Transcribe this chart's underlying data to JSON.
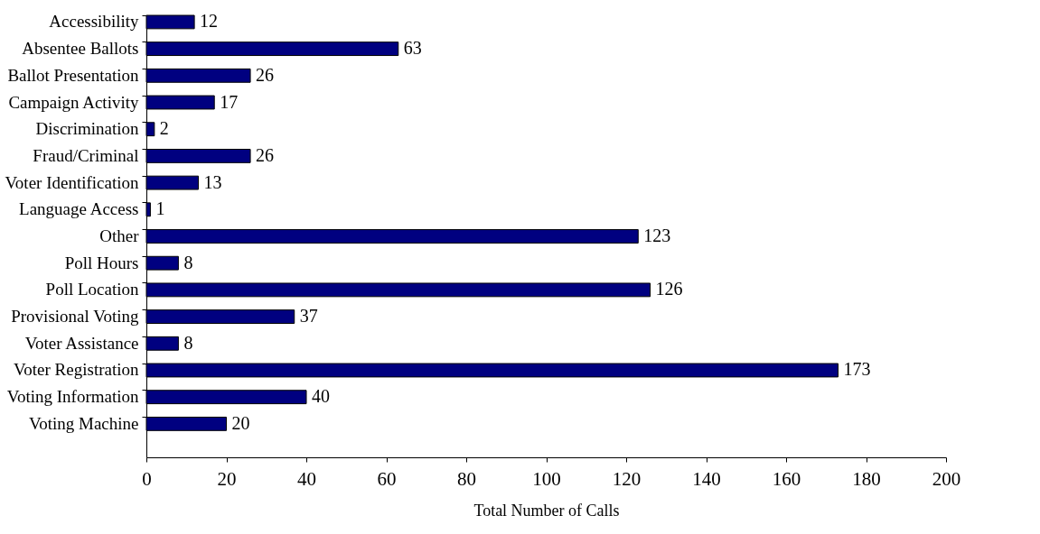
{
  "chart_data": {
    "type": "bar",
    "orientation": "horizontal",
    "xlabel": "Total Number of Calls",
    "categories": [
      "Accessibility",
      "Absentee Ballots",
      "Ballot Presentation",
      "Campaign Activity",
      "Discrimination",
      "Fraud/Criminal",
      "Voter Identification",
      "Language Access",
      "Other",
      "Poll Hours",
      "Poll Location",
      "Provisional Voting",
      "Voter Assistance",
      "Voter Registration",
      "Voting Information",
      "Voting Machine"
    ],
    "values": [
      12,
      63,
      26,
      17,
      2,
      26,
      13,
      1,
      123,
      8,
      126,
      37,
      8,
      173,
      40,
      20
    ],
    "color": "#000080",
    "xlim": [
      0,
      200
    ],
    "xticks": [
      0,
      20,
      40,
      60,
      80,
      100,
      120,
      140,
      160,
      180,
      200
    ],
    "data_labels": true,
    "grid": false
  }
}
